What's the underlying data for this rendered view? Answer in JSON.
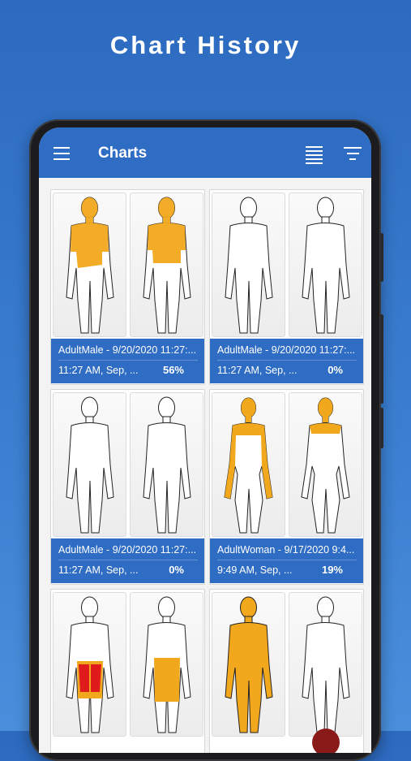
{
  "headline": "Chart History",
  "appbar": {
    "title": "Charts",
    "menu_icon": "hamburger-menu-icon",
    "list_icon": "list-view-icon",
    "filter_icon": "filter-icon",
    "color": "#2f6cc3"
  },
  "colors": {
    "burn_orange": "#f2a81d",
    "burn_red": "#e01b1b",
    "card_footer": "#2f6cc3"
  },
  "charts": [
    {
      "name": "AdultMale - 9/20/2020 11:27:...",
      "date": "11:27 AM, Sep, ...",
      "percent": "56%",
      "body": "male"
    },
    {
      "name": "AdultMale - 9/20/2020 11:27:...",
      "date": "11:27 AM, Sep, ...",
      "percent": "0%",
      "body": "male"
    },
    {
      "name": "AdultMale - 9/20/2020 11:27:...",
      "date": "11:27 AM, Sep, ...",
      "percent": "0%",
      "body": "male"
    },
    {
      "name": "AdultWoman - 9/17/2020 9:4...",
      "date": "9:49 AM, Sep, ...",
      "percent": "19%",
      "body": "female"
    },
    {
      "name": "",
      "date": "",
      "percent": "",
      "body": "male"
    },
    {
      "name": "",
      "date": "",
      "percent": "",
      "body": "male"
    }
  ]
}
